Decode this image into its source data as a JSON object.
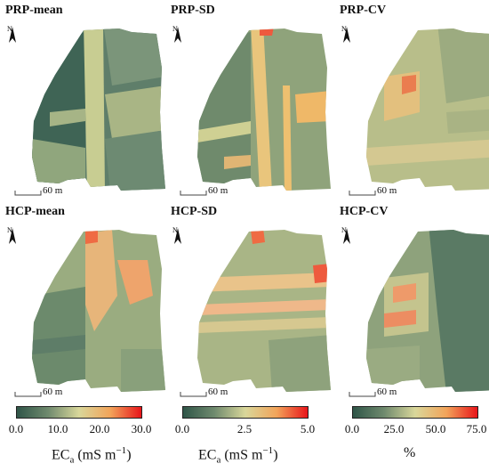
{
  "panels": [
    {
      "title": "PRP-mean",
      "scale_label": "60 m"
    },
    {
      "title": "PRP-SD",
      "scale_label": "60 m"
    },
    {
      "title": "PRP-CV",
      "scale_label": "60 m"
    },
    {
      "title": "HCP-mean",
      "scale_label": "60 m"
    },
    {
      "title": "HCP-SD",
      "scale_label": "60 m"
    },
    {
      "title": "HCP-CV",
      "scale_label": "60 m"
    }
  ],
  "legends": [
    {
      "ticks": [
        "0.0",
        "10.0",
        "20.0",
        "30.0"
      ],
      "unit_main": "EC",
      "unit_sub": "a",
      "unit_rest": " (mS m",
      "unit_sup": "−1",
      "unit_close": ")"
    },
    {
      "ticks": [
        "0.0",
        "2.5",
        "5.0"
      ],
      "unit_main": "EC",
      "unit_sub": "a",
      "unit_rest": " (mS m",
      "unit_sup": "−1",
      "unit_close": ")"
    },
    {
      "ticks": [
        "0.0",
        "25.0",
        "50.0",
        "75.0"
      ],
      "unit_main": "%",
      "unit_sub": "",
      "unit_rest": "",
      "unit_sup": "",
      "unit_close": ""
    }
  ],
  "colors": {
    "low": "#2f5548",
    "mid": "#d9d79a",
    "high": "#e8151a"
  }
}
